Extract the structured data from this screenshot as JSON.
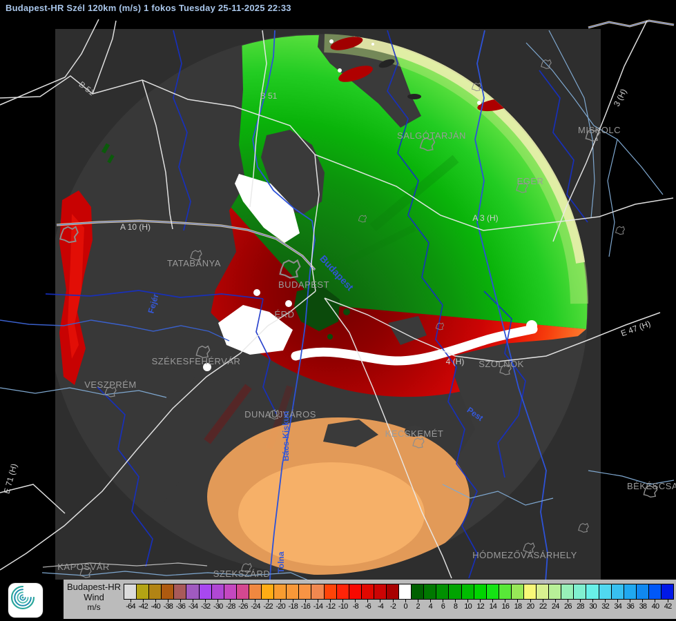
{
  "title": "Budapest-HR Szél 120km (m/s) 1 fokos Tuesday 25-11-2025 22:33",
  "legend": {
    "product": "Budapest-HR",
    "parameter": "Wind",
    "unit": "m/s",
    "scale": [
      {
        "value": "-64",
        "color": "#dcdcdc"
      },
      {
        "value": "-42",
        "color": "#b4a414"
      },
      {
        "value": "-40",
        "color": "#b28414"
      },
      {
        "value": "-38",
        "color": "#ae5a10"
      },
      {
        "value": "-36",
        "color": "#a85a5a"
      },
      {
        "value": "-34",
        "color": "#a05ac0"
      },
      {
        "value": "-32",
        "color": "#a848f0"
      },
      {
        "value": "-30",
        "color": "#b048d4"
      },
      {
        "value": "-28",
        "color": "#c448c0"
      },
      {
        "value": "-26",
        "color": "#d44890"
      },
      {
        "value": "-24",
        "color": "#f08840"
      },
      {
        "value": "-22",
        "color": "#ffac14"
      },
      {
        "value": "-20",
        "color": "#f89c30"
      },
      {
        "value": "-18",
        "color": "#f89838"
      },
      {
        "value": "-16",
        "color": "#f89444"
      },
      {
        "value": "-14",
        "color": "#f08850"
      },
      {
        "value": "-12",
        "color": "#ff4408"
      },
      {
        "value": "-10",
        "color": "#ff2408"
      },
      {
        "value": "-8",
        "color": "#f80800"
      },
      {
        "value": "-6",
        "color": "#e00800"
      },
      {
        "value": "-4",
        "color": "#cc0404"
      },
      {
        "value": "-2",
        "color": "#a80000"
      },
      {
        "value": "0",
        "color": "#ffffff"
      },
      {
        "value": "2",
        "color": "#006000"
      },
      {
        "value": "4",
        "color": "#007800"
      },
      {
        "value": "6",
        "color": "#009000"
      },
      {
        "value": "8",
        "color": "#00a400"
      },
      {
        "value": "10",
        "color": "#00bc00"
      },
      {
        "value": "12",
        "color": "#00d400"
      },
      {
        "value": "14",
        "color": "#14e414"
      },
      {
        "value": "16",
        "color": "#58e838"
      },
      {
        "value": "18",
        "color": "#98e858"
      },
      {
        "value": "20",
        "color": "#f8f878"
      },
      {
        "value": "22",
        "color": "#d8f090"
      },
      {
        "value": "24",
        "color": "#b8f098"
      },
      {
        "value": "26",
        "color": "#98f0b8"
      },
      {
        "value": "28",
        "color": "#80f0d0"
      },
      {
        "value": "30",
        "color": "#68f0e8"
      },
      {
        "value": "32",
        "color": "#50d8f0"
      },
      {
        "value": "34",
        "color": "#38c0f0"
      },
      {
        "value": "36",
        "color": "#20a8f0"
      },
      {
        "value": "38",
        "color": "#1088f0"
      },
      {
        "value": "40",
        "color": "#0058f8"
      },
      {
        "value": "42",
        "color": "#0018e8"
      }
    ]
  },
  "map": {
    "cities": [
      "SALGÓTARJÁN",
      "MISKOLC",
      "EGER",
      "TATABÁNYA",
      "BUDAPEST",
      "ÉRD",
      "SZÉKESFEHÉRVÁR",
      "VESZPRÉM",
      "DUNAÚJVÁROS",
      "KECSKEMÉT",
      "SZOLNOK",
      "KAPOSVÁR",
      "SZEKSZÁRD",
      "HÓDMEZŐVÁSÁRHELY",
      "BÉKÉSCSABA"
    ],
    "road_labels": [
      "B 51",
      "B 51",
      "A 10 (H)",
      "A 3 (H)",
      "3 (H)",
      "4 (H)",
      "E 47 (H)",
      "E 71 (H)"
    ],
    "water_labels": [
      "Budapest",
      "Pest",
      "Bács-Kiskun",
      "Tolna",
      "Fejér"
    ]
  },
  "colors": {
    "background": "#000000",
    "map_background": "#2e2e2e",
    "radar_no_echo": "#383838",
    "title_text": "#a9c6ea",
    "legend_background": "#c7c7c7",
    "toward_radar_green": "#00a000",
    "away_from_radar_red": "#cc0000",
    "zero_isodop_white": "#ffffff"
  }
}
